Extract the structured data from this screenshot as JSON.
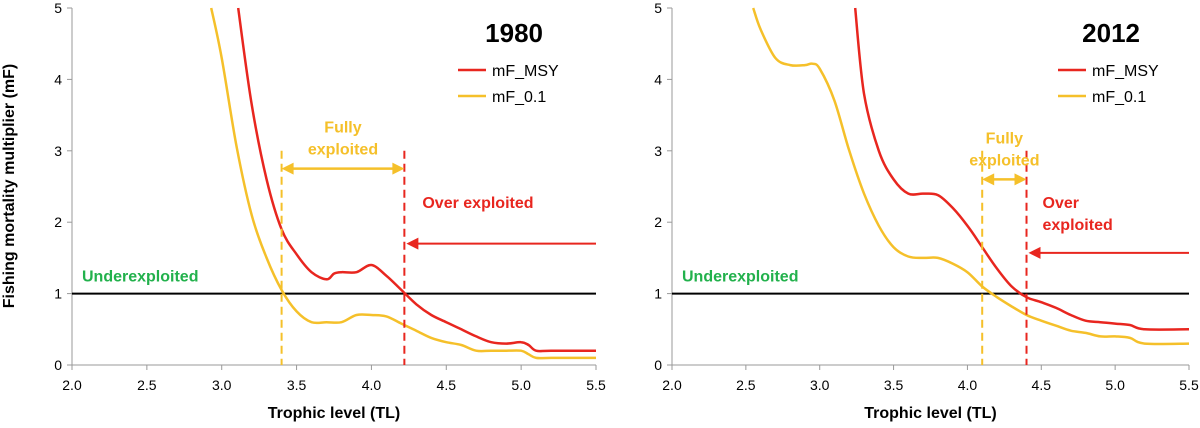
{
  "ylabel": "Fishing mortality multiplier (mF)",
  "colors": {
    "msy": "#e8261f",
    "f01": "#f5c02a",
    "under": "#22b14c",
    "axis": "#000000",
    "tick": "#999999"
  },
  "chart_data": [
    {
      "type": "line",
      "title": "1980",
      "xlabel": "Trophic level (TL)",
      "xlim": [
        2.0,
        5.5
      ],
      "ylim": [
        0,
        5
      ],
      "xticks": [
        "2.0",
        "2.5",
        "3.0",
        "3.5",
        "4.0",
        "4.5",
        "5.0",
        "5.5"
      ],
      "yticks": [
        "0",
        "1",
        "2",
        "3",
        "4",
        "5"
      ],
      "reference_line": 1,
      "series": [
        {
          "name": "mF_MSY",
          "color": "#e8261f",
          "x": [
            3.11,
            3.2,
            3.3,
            3.4,
            3.5,
            3.6,
            3.7,
            3.75,
            3.8,
            3.9,
            4.0,
            4.1,
            4.2,
            4.3,
            4.4,
            4.5,
            4.6,
            4.7,
            4.8,
            4.9,
            5.0,
            5.05,
            5.1,
            5.2,
            5.5
          ],
          "y": [
            5.0,
            3.65,
            2.6,
            1.9,
            1.55,
            1.3,
            1.2,
            1.28,
            1.3,
            1.3,
            1.4,
            1.25,
            1.05,
            0.85,
            0.7,
            0.6,
            0.5,
            0.4,
            0.32,
            0.3,
            0.32,
            0.28,
            0.2,
            0.2,
            0.2
          ]
        },
        {
          "name": "mF_0.1",
          "color": "#f5c02a",
          "x": [
            2.93,
            3.0,
            3.1,
            3.2,
            3.3,
            3.4,
            3.5,
            3.6,
            3.7,
            3.8,
            3.9,
            4.0,
            4.1,
            4.2,
            4.3,
            4.4,
            4.5,
            4.6,
            4.7,
            4.8,
            4.9,
            5.0,
            5.05,
            5.1,
            5.2,
            5.5
          ],
          "y": [
            5.0,
            4.3,
            3.05,
            2.1,
            1.5,
            1.05,
            0.75,
            0.6,
            0.6,
            0.6,
            0.7,
            0.7,
            0.68,
            0.58,
            0.48,
            0.38,
            0.32,
            0.28,
            0.2,
            0.2,
            0.2,
            0.2,
            0.15,
            0.1,
            0.1,
            0.1
          ]
        }
      ],
      "annotations": {
        "f01_boundary_x": 3.4,
        "msy_boundary_x": 4.22,
        "fully_exploited": [
          "Fully",
          "exploited"
        ],
        "fully_arrow_y": 2.75,
        "over_exploited": [
          "Over exploited"
        ],
        "over_arrow_y": 1.7,
        "underexploited": "Underexploited"
      }
    },
    {
      "type": "line",
      "title": "2012",
      "xlabel": "Trophic level (TL)",
      "xlim": [
        2.0,
        5.5
      ],
      "ylim": [
        0,
        5
      ],
      "xticks": [
        "2.0",
        "2.5",
        "3.0",
        "3.5",
        "4.0",
        "4.5",
        "5.0",
        "5.5"
      ],
      "yticks": [
        "0",
        "1",
        "2",
        "3",
        "4",
        "5"
      ],
      "reference_line": 1,
      "series": [
        {
          "name": "mF_MSY",
          "color": "#e8261f",
          "x": [
            3.24,
            3.3,
            3.4,
            3.5,
            3.6,
            3.7,
            3.8,
            3.9,
            4.0,
            4.1,
            4.2,
            4.3,
            4.4,
            4.5,
            4.6,
            4.7,
            4.8,
            4.9,
            5.0,
            5.1,
            5.2,
            5.5
          ],
          "y": [
            5.0,
            3.8,
            3.0,
            2.6,
            2.4,
            2.4,
            2.38,
            2.2,
            1.95,
            1.65,
            1.35,
            1.1,
            0.95,
            0.88,
            0.8,
            0.7,
            0.62,
            0.6,
            0.58,
            0.56,
            0.5,
            0.5
          ]
        },
        {
          "name": "mF_0.1",
          "color": "#f5c02a",
          "x": [
            2.55,
            2.6,
            2.7,
            2.8,
            2.9,
            2.95,
            3.0,
            3.1,
            3.2,
            3.3,
            3.4,
            3.5,
            3.6,
            3.7,
            3.8,
            3.9,
            4.0,
            4.1,
            4.2,
            4.3,
            4.4,
            4.5,
            4.6,
            4.7,
            4.8,
            4.9,
            5.0,
            5.1,
            5.2,
            5.5
          ],
          "y": [
            5.0,
            4.7,
            4.3,
            4.2,
            4.2,
            4.22,
            4.15,
            3.7,
            3.0,
            2.4,
            1.95,
            1.65,
            1.52,
            1.5,
            1.5,
            1.42,
            1.3,
            1.1,
            0.95,
            0.82,
            0.7,
            0.62,
            0.55,
            0.48,
            0.45,
            0.4,
            0.4,
            0.38,
            0.3,
            0.3
          ]
        }
      ],
      "annotations": {
        "f01_boundary_x": 4.1,
        "msy_boundary_x": 4.4,
        "fully_exploited": [
          "Fully",
          "exploited"
        ],
        "fully_arrow_y": 2.6,
        "over_exploited": [
          "Over",
          "exploited"
        ],
        "over_arrow_y": 1.57,
        "underexploited": "Underexploited"
      }
    }
  ]
}
